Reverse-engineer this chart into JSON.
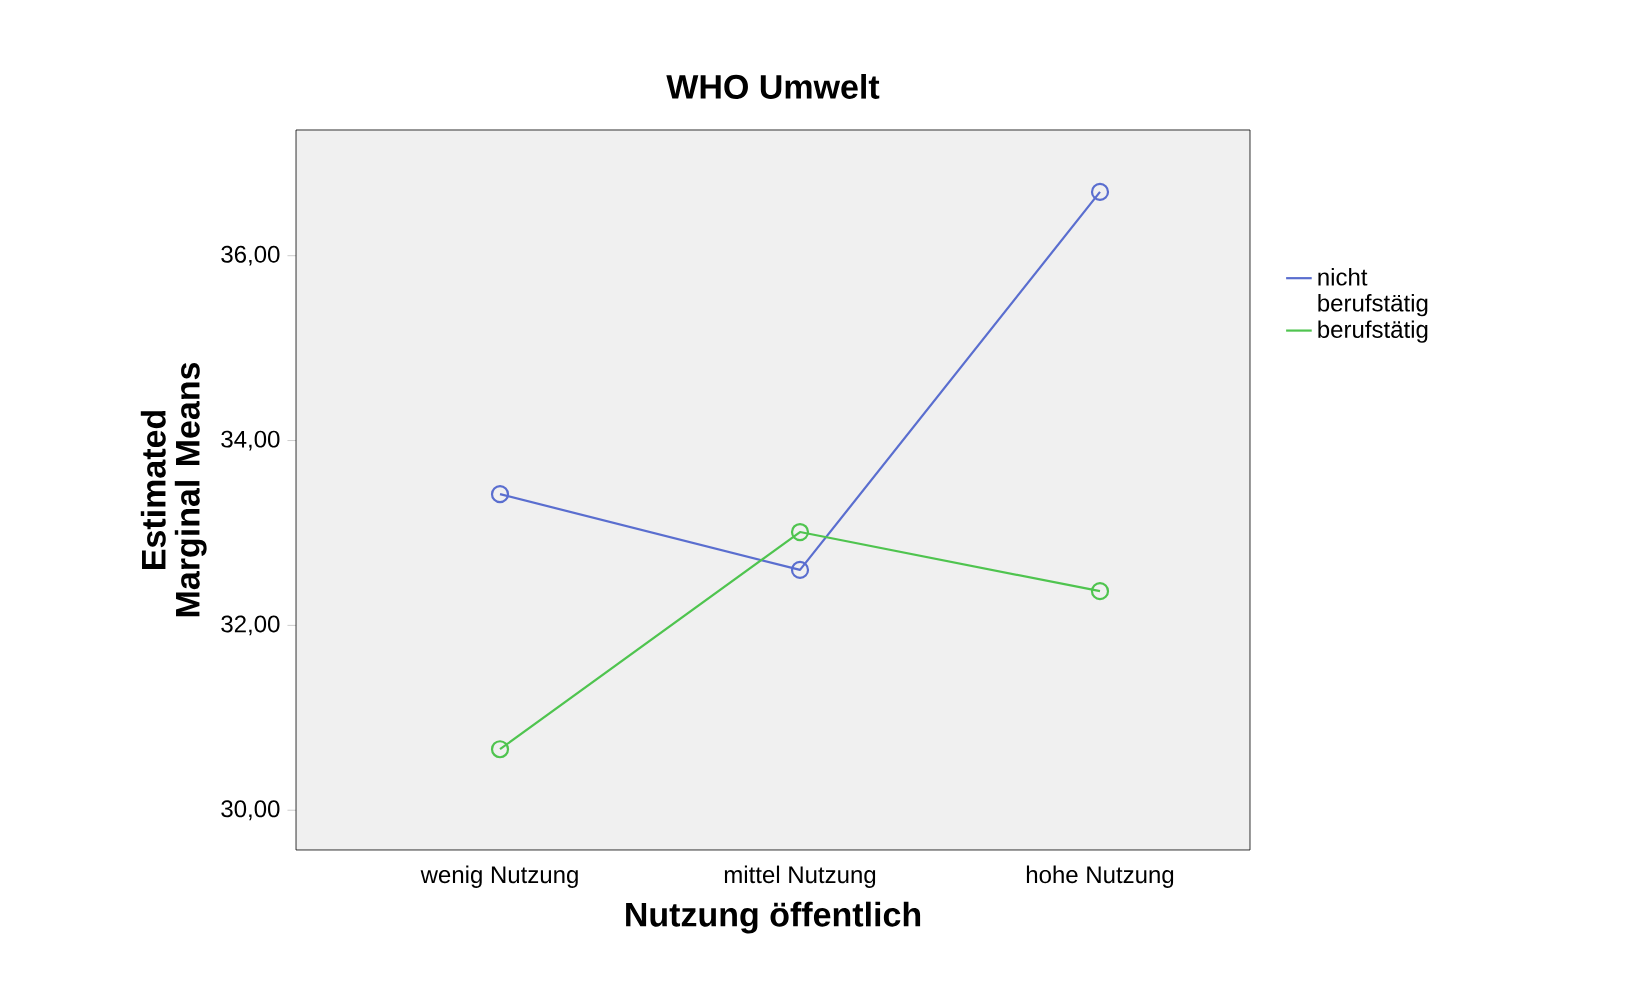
{
  "chart_data": {
    "type": "line",
    "title": "WHO Umwelt",
    "xlabel": "Nutzung öffentlich",
    "ylabel": "Estimated Marginal Means",
    "categories": [
      "wenig Nutzung",
      "mittel Nutzung",
      "hohe Nutzung"
    ],
    "series": [
      {
        "name": "nicht berufstätig",
        "color": "#5a6ecf",
        "values": [
          33.42,
          32.6,
          36.69
        ]
      },
      {
        "name": "berufstätig",
        "color": "#4fc44f",
        "values": [
          30.66,
          33.01,
          32.37
        ]
      }
    ],
    "ylim": [
      29.57,
      37.36
    ],
    "yticks": [
      {
        "value": 30,
        "label": "30,00"
      },
      {
        "value": 32,
        "label": "32,00"
      },
      {
        "value": 34,
        "label": "34,00"
      },
      {
        "value": 36,
        "label": "36,00"
      }
    ],
    "grid": false,
    "legend": "right",
    "marker": "circle",
    "line_style": "solid"
  }
}
